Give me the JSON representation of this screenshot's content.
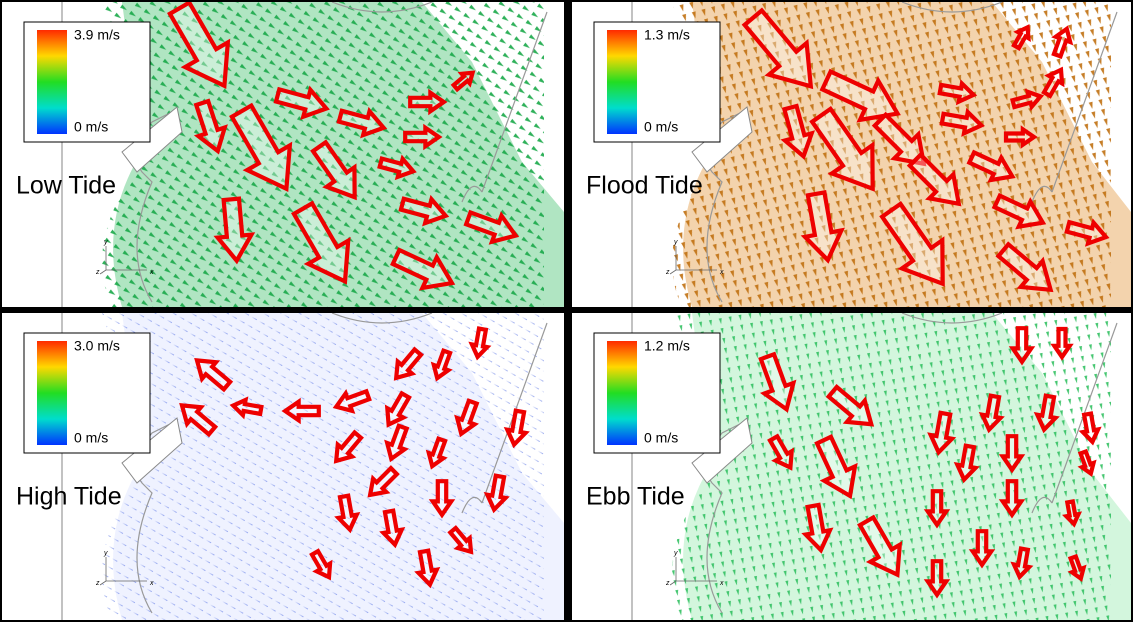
{
  "panels": [
    {
      "title": "Low Tide",
      "max_label": "3.9 m/s",
      "min_label": "0 m/s"
    },
    {
      "title": "Flood Tide",
      "max_label": "1.3 m/s",
      "min_label": "0 m/s"
    },
    {
      "title": "High Tide",
      "max_label": "3.0 m/s",
      "min_label": "0 m/s"
    },
    {
      "title": "Ebb Tide",
      "max_label": "1.2 m/s",
      "min_label": "0 m/s"
    }
  ],
  "axis_labels": {
    "y": "y",
    "z": "z",
    "x": "x"
  }
}
